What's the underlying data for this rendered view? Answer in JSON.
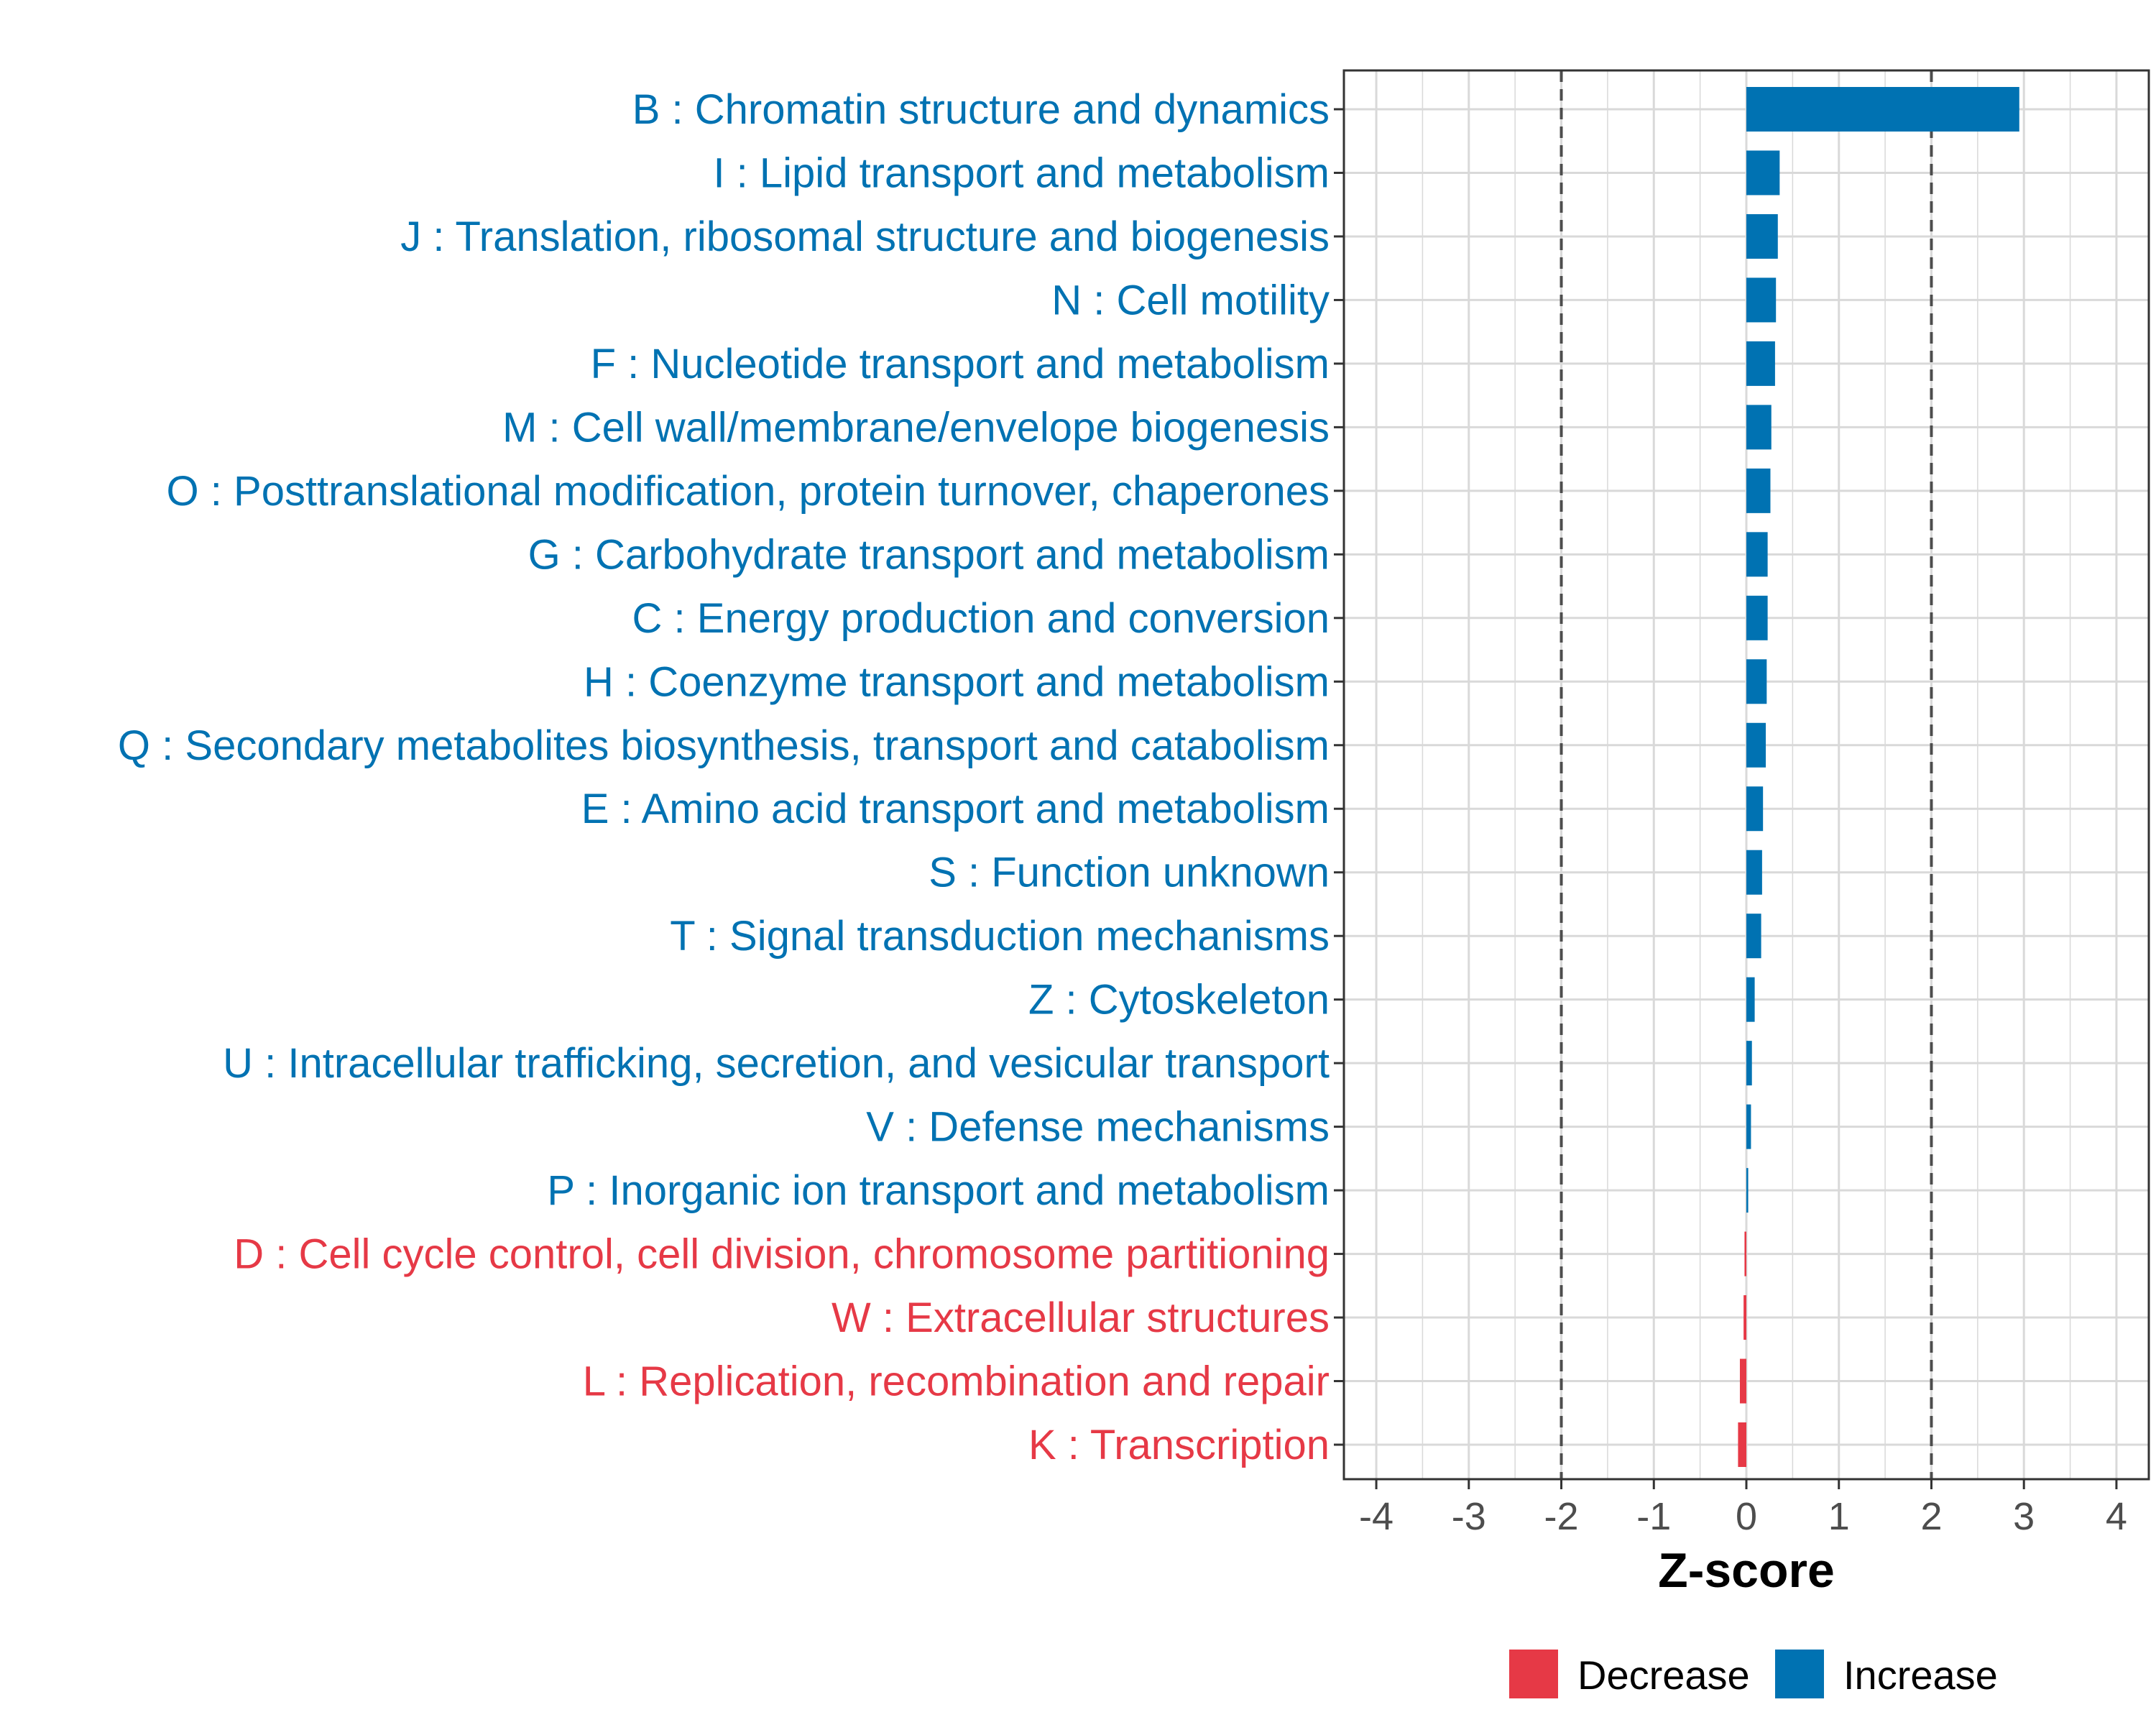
{
  "chart_data": {
    "type": "bar",
    "orientation": "horizontal",
    "title": "",
    "xlabel": "Z-score",
    "ylabel": "",
    "xlim": [
      -4.35,
      4.35
    ],
    "xticks": [
      -4,
      -3,
      -2,
      -1,
      0,
      1,
      2,
      3,
      4
    ],
    "xtick_labels": [
      "-4",
      "-3",
      "-2",
      "-1",
      "0",
      "1",
      "2",
      "3",
      "4"
    ],
    "reference_lines": [
      -2,
      2
    ],
    "grid": true,
    "categories": [
      "B : Chromatin structure and dynamics",
      "I : Lipid transport and metabolism",
      "J : Translation, ribosomal structure and biogenesis",
      "N : Cell motility",
      "F : Nucleotide transport and metabolism",
      "M : Cell wall/membrane/envelope biogenesis",
      "O : Posttranslational modification, protein turnover, chaperones",
      "G : Carbohydrate transport and metabolism",
      "C : Energy production and conversion",
      "H : Coenzyme transport and metabolism",
      "Q : Secondary metabolites biosynthesis, transport and catabolism",
      "E : Amino acid transport and metabolism",
      "S : Function unknown",
      "T : Signal transduction mechanisms",
      "Z : Cytoskeleton",
      "U : Intracellular trafficking, secretion, and vesicular transport",
      "V : Defense mechanisms",
      "P : Inorganic ion transport and metabolism",
      "D : Cell cycle control, cell division, chromosome partitioning",
      "W : Extracellular structures",
      "L : Replication, recombination and repair",
      "K : Transcription"
    ],
    "values": [
      2.95,
      0.36,
      0.34,
      0.32,
      0.31,
      0.27,
      0.26,
      0.23,
      0.23,
      0.22,
      0.21,
      0.18,
      0.17,
      0.16,
      0.09,
      0.06,
      0.05,
      0.02,
      -0.02,
      -0.03,
      -0.07,
      -0.09
    ],
    "groups": [
      "Increase",
      "Increase",
      "Increase",
      "Increase",
      "Increase",
      "Increase",
      "Increase",
      "Increase",
      "Increase",
      "Increase",
      "Increase",
      "Increase",
      "Increase",
      "Increase",
      "Increase",
      "Increase",
      "Increase",
      "Increase",
      "Decrease",
      "Decrease",
      "Decrease",
      "Decrease"
    ],
    "legend": {
      "position": "bottom",
      "entries": [
        {
          "label": "Decrease",
          "color": "#E63946"
        },
        {
          "label": "Increase",
          "color": "#0072B2"
        }
      ]
    },
    "colors": {
      "Increase": "#0072B2",
      "Decrease": "#E63946",
      "grid": "#D9D9D9",
      "reference_line": "#4D4D4D",
      "panel_border": "#333333"
    }
  }
}
